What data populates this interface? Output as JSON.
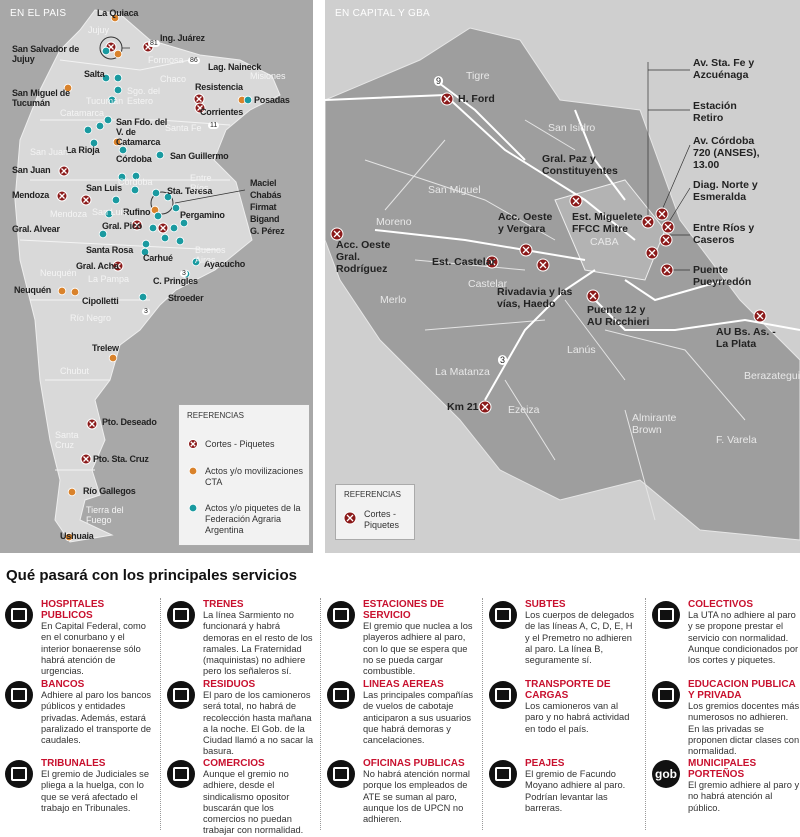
{
  "left_map": {
    "title": "EN EL PAIS",
    "places": [
      "La Quiaca",
      "San Salvador de Jujuy",
      "Ing. Juárez",
      "Lag. Naineck",
      "Salta",
      "San Miguel de Tucumán",
      "Resistencia",
      "Posadas",
      "San Fdo. del V. de Catamarca",
      "Corrientes",
      "La Rioja",
      "San Guillermo",
      "Córdoba",
      "San Juan",
      "San Luis",
      "Mendoza",
      "Sta. Teresa",
      "Maciel",
      "Chabás",
      "Firmat",
      "Bigand",
      "G. Pérez",
      "Rufino",
      "Pergamino",
      "Gral. Alvear",
      "Gral. Pico",
      "Santa Rosa",
      "Carhué",
      "Ayacucho",
      "Gral. Acha",
      "C. Pringles",
      "Neuquén",
      "Cipolletti",
      "Stroeder",
      "Trelew",
      "Pto. Deseado",
      "Pto. Sta. Cruz",
      "Río Gallegos",
      "Ushuaia"
    ],
    "regions": [
      "Jujuy",
      "Formosa",
      "Chaco",
      "Misiones",
      "Sgo. del Estero",
      "Tucumán",
      "Catamarca",
      "Santa Fe",
      "San Juan",
      "Córdoba",
      "Entre Ríos",
      "Mendoza",
      "San Luis",
      "Buenos Aires",
      "Neuquén",
      "La Pampa",
      "Río Negro",
      "Chubut",
      "Santa Cruz",
      "Tierra del Fuego"
    ],
    "roads": [
      "81",
      "86",
      "11",
      "3",
      "3"
    ],
    "legend": {
      "title": "REFERENCIAS",
      "items": [
        "Cortes - Piquetes",
        "Actos y/o movilizaciones CTA",
        "Actos y/o piquetes de la Federación Agraria Argentina"
      ]
    }
  },
  "right_map": {
    "title": "EN CAPITAL Y GBA",
    "places": [
      "H. Ford",
      "Av. Sta. Fe y Azcuénaga",
      "Estación Retiro",
      "Av. Córdoba 720 (ANSES), 13.00",
      "Gral. Paz y Constituyentes",
      "Diag. Norte y Esmeralda",
      "Acc. Oeste y Vergara",
      "Est. Miguelete FFCC Mitre",
      "Entre Ríos y Caseros",
      "Acc. Oeste Gral. Rodríguez",
      "Est. Castelar",
      "Puente Pueyrredón",
      "Rivadavia y las vías, Haedo",
      "Puente 12 y AU Ricchieri",
      "AU Bs. As. - La Plata",
      "Km 21"
    ],
    "regions": [
      "Tigre",
      "San Isidro",
      "San Miguel",
      "Moreno",
      "CABA",
      "Castelar",
      "Merlo",
      "Lanús",
      "La Matanza",
      "Berazategui",
      "Ezeiza",
      "Almirante Brown",
      "F. Varela"
    ],
    "roads": [
      "9",
      "3"
    ],
    "legend": {
      "title": "REFERENCIAS",
      "items": [
        "Cortes - Piquetes"
      ]
    }
  },
  "services": {
    "title": "Qué pasará con los principales servicios",
    "items": [
      {
        "title": "HOSPITALES PUBLICOS",
        "text": "En Capital Federal, como en el conurbano y el interior bonaerense sólo habrá atención de urgencias."
      },
      {
        "title": "TRENES",
        "text": "La línea Sarmiento no funcionará y habrá demoras en el resto de los ramales. La Fraternidad (maquinistas) no adhiere pero los señaleros sí."
      },
      {
        "title": "ESTACIONES DE SERVICIO",
        "text": "El gremio que nuclea a los playeros adhiere al paro, con lo que se espera que no se pueda cargar combustible."
      },
      {
        "title": "SUBTES",
        "text": "Los cuerpos de delegados de las líneas A, C, D, E, H y el Premetro no adhieren al paro. La línea B, seguramente sí."
      },
      {
        "title": "COLECTIVOS",
        "text": "La UTA no adhiere al paro y se propone prestar el servicio con normalidad. Aunque condicionados por los cortes y piquetes."
      },
      {
        "title": "BANCOS",
        "text": "Adhiere al paro los bancos públicos y entidades privadas. Además, estará paralizado el transporte de caudales."
      },
      {
        "title": "RESIDUOS",
        "text": "El paro de los camioneros será total, no habrá de recolección hasta mañana a la noche. El Gob. de la Ciudad llamó a no sacar la basura."
      },
      {
        "title": "LINEAS AEREAS",
        "text": "Las principales compañías de vuelos de cabotaje anticiparon a sus usuarios que habrá demoras y cancelaciones."
      },
      {
        "title": "TRANSPORTE DE CARGAS",
        "text": "Los camioneros van al paro y no habrá actividad en todo el país."
      },
      {
        "title": "EDUCACION PUBLICA Y PRIVADA",
        "text": "Los gremios docentes más numerosos no adhieren. En las privadas se proponen dictar clases con normalidad."
      },
      {
        "title": "TRIBUNALES",
        "text": "El gremio de Judiciales se pliega a la huelga, con lo que se verá afectado el trabajo en Tribunales."
      },
      {
        "title": "COMERCIOS",
        "text": "Aunque el gremio no adhiere, desde el sindicalismo opositor buscarán que los comercios no puedan trabajar con normalidad."
      },
      {
        "title": "OFICINAS PUBLICAS",
        "text": "No habrá atención normal porque los empleados de ATE se suman al paro, aunque los de UPCN no adhieren."
      },
      {
        "title": "PEAJES",
        "text": "El gremio de Facundo Moyano adhiere al paro. Podrían levantar las barreras."
      },
      {
        "title": "MUNICIPALES PORTEÑOS",
        "text": "El gremio adhiere al paro y no habrá atención al público.",
        "icon": "gob"
      }
    ]
  }
}
